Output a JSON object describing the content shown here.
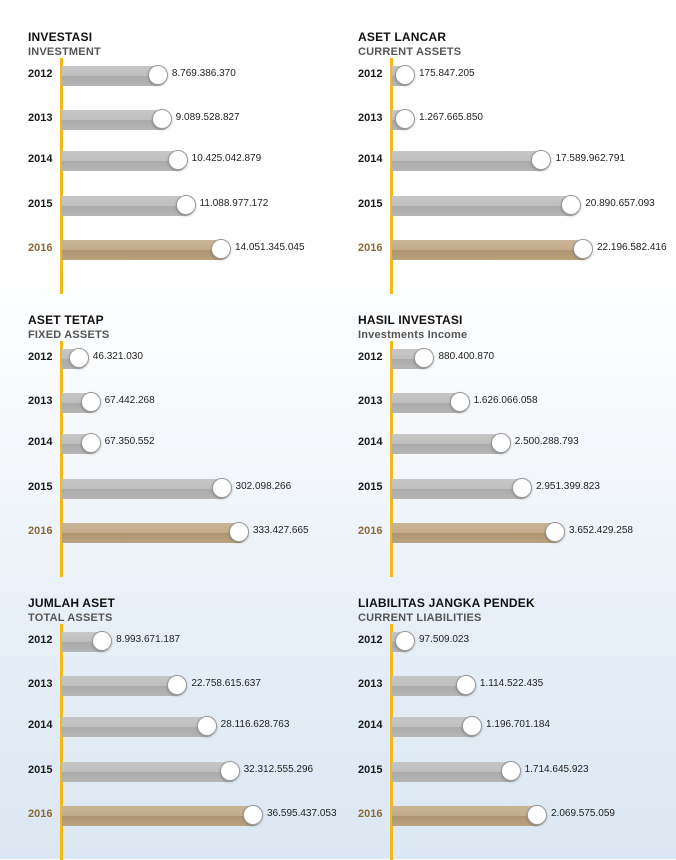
{
  "chart_data": [
    {
      "type": "bar",
      "title": "INVESTASI",
      "subtitle": "INVESTMENT",
      "categories": [
        "2012",
        "2013",
        "2014",
        "2015",
        "2016"
      ],
      "values": [
        8769386370,
        9089528827,
        10425042879,
        11088977172,
        14051345045
      ],
      "labels": [
        "8.769.386.370",
        "9.089.528.827",
        "10.425.042.879",
        "11.088.977.172",
        "14.051.345.045"
      ],
      "highlight": "2016"
    },
    {
      "type": "bar",
      "title": "ASET LANCAR",
      "subtitle": "CURRENT ASSETS",
      "categories": [
        "2012",
        "2013",
        "2014",
        "2015",
        "2016"
      ],
      "values": [
        175847205,
        1267665850,
        17589962791,
        20890657093,
        22196582416
      ],
      "labels": [
        "175.847.205",
        "1.267.665.850",
        "17.589.962.791",
        "20.890.657.093",
        "22.196.582.416"
      ],
      "highlight": "2016"
    },
    {
      "type": "bar",
      "title": "ASET TETAP",
      "subtitle": "FIXED ASSETS",
      "categories": [
        "2012",
        "2013",
        "2014",
        "2015",
        "2016"
      ],
      "values": [
        46321030,
        67442268,
        67350552,
        302098266,
        333427665
      ],
      "labels": [
        "46.321.030",
        "67.442.268",
        "67.350.552",
        "302.098.266",
        "333.427.665"
      ],
      "highlight": "2016"
    },
    {
      "type": "bar",
      "title": "HASIL INVESTASI",
      "subtitle": "Investments Income",
      "categories": [
        "2012",
        "2013",
        "2014",
        "2015",
        "2016"
      ],
      "values": [
        880400870,
        1626066058,
        2500288793,
        2951399823,
        3652429258
      ],
      "labels": [
        "880.400.870",
        "1.626.066.058",
        "2.500.288.793",
        "2.951.399.823",
        "3.652.429.258"
      ],
      "highlight": "2016"
    },
    {
      "type": "bar",
      "title": "JUMLAH ASET",
      "subtitle": "TOTAL ASSETS",
      "categories": [
        "2012",
        "2013",
        "2014",
        "2015",
        "2016"
      ],
      "values": [
        8993671187,
        22758615637,
        28116628763,
        32312555296,
        36595437053
      ],
      "labels": [
        "8.993.671.187",
        "22.758.615.637",
        "28.116.628.763",
        "32.312.555.296",
        "36.595.437.053"
      ],
      "highlight": "2016"
    },
    {
      "type": "bar",
      "title": "LIABILITAS JANGKA PENDEK",
      "subtitle": "CURRENT LIABILITIES",
      "categories": [
        "2012",
        "2013",
        "2014",
        "2015",
        "2016"
      ],
      "values": [
        97509023,
        1114522435,
        1196701184,
        1714645923,
        2069575059
      ],
      "labels": [
        "97.509.023",
        "1.114.522.435",
        "1.196.701.184",
        "1.714.645.923",
        "2.069.575.059"
      ],
      "highlight": "2016"
    }
  ],
  "colors": {
    "axis": "#f2b81c",
    "bar": "#bdbdbd",
    "bar_highlight": "#bca583",
    "year_highlight": "#8a6a3a"
  }
}
